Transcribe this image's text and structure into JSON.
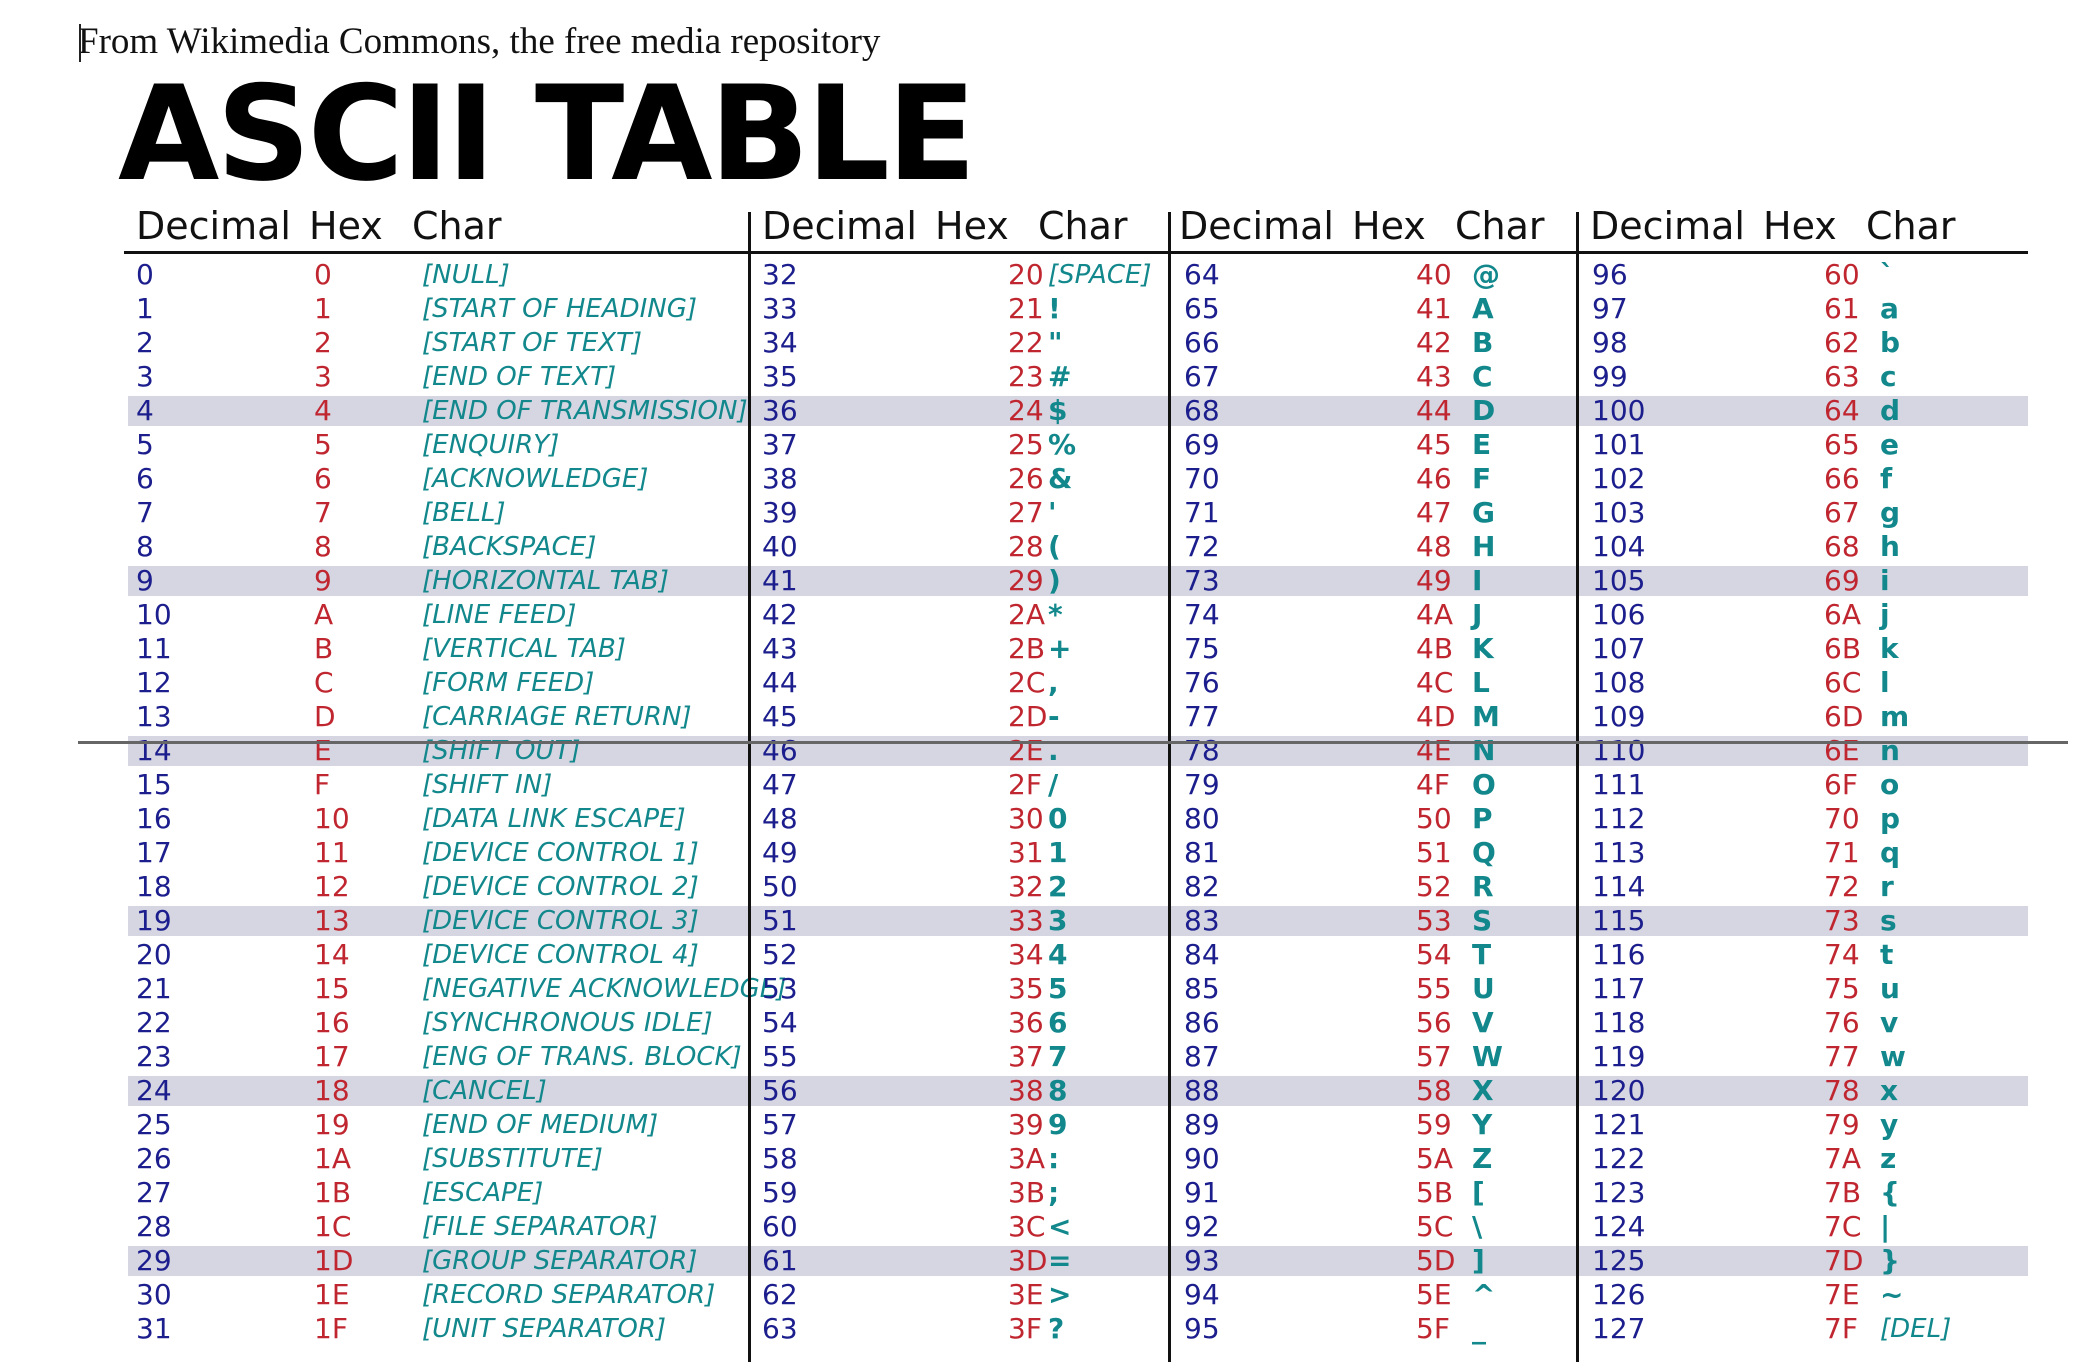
{
  "caption": "From Wikimedia Commons, the free media repository",
  "title": "ASCII TABLE",
  "headers": {
    "decimal": "Decimal",
    "hex": "Hex",
    "char": "Char"
  },
  "table": [
    {
      "dec": "0",
      "hex": "0",
      "char": "[NULL]",
      "kind": "ctl"
    },
    {
      "dec": "1",
      "hex": "1",
      "char": "[START OF HEADING]",
      "kind": "ctl"
    },
    {
      "dec": "2",
      "hex": "2",
      "char": "[START OF TEXT]",
      "kind": "ctl"
    },
    {
      "dec": "3",
      "hex": "3",
      "char": "[END OF TEXT]",
      "kind": "ctl"
    },
    {
      "dec": "4",
      "hex": "4",
      "char": "[END OF TRANSMISSION]",
      "kind": "ctl"
    },
    {
      "dec": "5",
      "hex": "5",
      "char": "[ENQUIRY]",
      "kind": "ctl"
    },
    {
      "dec": "6",
      "hex": "6",
      "char": "[ACKNOWLEDGE]",
      "kind": "ctl"
    },
    {
      "dec": "7",
      "hex": "7",
      "char": "[BELL]",
      "kind": "ctl"
    },
    {
      "dec": "8",
      "hex": "8",
      "char": "[BACKSPACE]",
      "kind": "ctl"
    },
    {
      "dec": "9",
      "hex": "9",
      "char": "[HORIZONTAL TAB]",
      "kind": "ctl"
    },
    {
      "dec": "10",
      "hex": "A",
      "char": "[LINE FEED]",
      "kind": "ctl"
    },
    {
      "dec": "11",
      "hex": "B",
      "char": "[VERTICAL TAB]",
      "kind": "ctl"
    },
    {
      "dec": "12",
      "hex": "C",
      "char": "[FORM FEED]",
      "kind": "ctl"
    },
    {
      "dec": "13",
      "hex": "D",
      "char": "[CARRIAGE RETURN]",
      "kind": "ctl"
    },
    {
      "dec": "14",
      "hex": "E",
      "char": "[SHIFT OUT]",
      "kind": "ctl"
    },
    {
      "dec": "15",
      "hex": "F",
      "char": "[SHIFT IN]",
      "kind": "ctl"
    },
    {
      "dec": "16",
      "hex": "10",
      "char": "[DATA LINK ESCAPE]",
      "kind": "ctl"
    },
    {
      "dec": "17",
      "hex": "11",
      "char": "[DEVICE CONTROL 1]",
      "kind": "ctl"
    },
    {
      "dec": "18",
      "hex": "12",
      "char": "[DEVICE CONTROL 2]",
      "kind": "ctl"
    },
    {
      "dec": "19",
      "hex": "13",
      "char": "[DEVICE CONTROL 3]",
      "kind": "ctl"
    },
    {
      "dec": "20",
      "hex": "14",
      "char": "[DEVICE CONTROL 4]",
      "kind": "ctl"
    },
    {
      "dec": "21",
      "hex": "15",
      "char": "[NEGATIVE ACKNOWLEDGE]",
      "kind": "ctl"
    },
    {
      "dec": "22",
      "hex": "16",
      "char": "[SYNCHRONOUS IDLE]",
      "kind": "ctl"
    },
    {
      "dec": "23",
      "hex": "17",
      "char": "[ENG OF TRANS. BLOCK]",
      "kind": "ctl"
    },
    {
      "dec": "24",
      "hex": "18",
      "char": "[CANCEL]",
      "kind": "ctl"
    },
    {
      "dec": "25",
      "hex": "19",
      "char": "[END OF MEDIUM]",
      "kind": "ctl"
    },
    {
      "dec": "26",
      "hex": "1A",
      "char": "[SUBSTITUTE]",
      "kind": "ctl"
    },
    {
      "dec": "27",
      "hex": "1B",
      "char": "[ESCAPE]",
      "kind": "ctl"
    },
    {
      "dec": "28",
      "hex": "1C",
      "char": "[FILE SEPARATOR]",
      "kind": "ctl"
    },
    {
      "dec": "29",
      "hex": "1D",
      "char": "[GROUP SEPARATOR]",
      "kind": "ctl"
    },
    {
      "dec": "30",
      "hex": "1E",
      "char": "[RECORD SEPARATOR]",
      "kind": "ctl"
    },
    {
      "dec": "31",
      "hex": "1F",
      "char": "[UNIT SEPARATOR]",
      "kind": "ctl"
    },
    {
      "dec": "32",
      "hex": "20",
      "char": "[SPACE]",
      "kind": "ctl"
    },
    {
      "dec": "33",
      "hex": "21",
      "char": "!",
      "kind": "chr"
    },
    {
      "dec": "34",
      "hex": "22",
      "char": "\"",
      "kind": "chr"
    },
    {
      "dec": "35",
      "hex": "23",
      "char": "#",
      "kind": "chr"
    },
    {
      "dec": "36",
      "hex": "24",
      "char": "$",
      "kind": "chr"
    },
    {
      "dec": "37",
      "hex": "25",
      "char": "%",
      "kind": "chr"
    },
    {
      "dec": "38",
      "hex": "26",
      "char": "&",
      "kind": "chr"
    },
    {
      "dec": "39",
      "hex": "27",
      "char": "'",
      "kind": "chr"
    },
    {
      "dec": "40",
      "hex": "28",
      "char": "(",
      "kind": "chr"
    },
    {
      "dec": "41",
      "hex": "29",
      "char": ")",
      "kind": "chr"
    },
    {
      "dec": "42",
      "hex": "2A",
      "char": "*",
      "kind": "chr"
    },
    {
      "dec": "43",
      "hex": "2B",
      "char": "+",
      "kind": "chr"
    },
    {
      "dec": "44",
      "hex": "2C",
      "char": ",",
      "kind": "chr"
    },
    {
      "dec": "45",
      "hex": "2D",
      "char": "-",
      "kind": "chr"
    },
    {
      "dec": "46",
      "hex": "2E",
      "char": ".",
      "kind": "chr"
    },
    {
      "dec": "47",
      "hex": "2F",
      "char": "/",
      "kind": "chr"
    },
    {
      "dec": "48",
      "hex": "30",
      "char": "0",
      "kind": "chr"
    },
    {
      "dec": "49",
      "hex": "31",
      "char": "1",
      "kind": "chr"
    },
    {
      "dec": "50",
      "hex": "32",
      "char": "2",
      "kind": "chr"
    },
    {
      "dec": "51",
      "hex": "33",
      "char": "3",
      "kind": "chr"
    },
    {
      "dec": "52",
      "hex": "34",
      "char": "4",
      "kind": "chr"
    },
    {
      "dec": "53",
      "hex": "35",
      "char": "5",
      "kind": "chr"
    },
    {
      "dec": "54",
      "hex": "36",
      "char": "6",
      "kind": "chr"
    },
    {
      "dec": "55",
      "hex": "37",
      "char": "7",
      "kind": "chr"
    },
    {
      "dec": "56",
      "hex": "38",
      "char": "8",
      "kind": "chr"
    },
    {
      "dec": "57",
      "hex": "39",
      "char": "9",
      "kind": "chr"
    },
    {
      "dec": "58",
      "hex": "3A",
      "char": ":",
      "kind": "chr"
    },
    {
      "dec": "59",
      "hex": "3B",
      "char": ";",
      "kind": "chr"
    },
    {
      "dec": "60",
      "hex": "3C",
      "char": "<",
      "kind": "chr"
    },
    {
      "dec": "61",
      "hex": "3D",
      "char": "=",
      "kind": "chr"
    },
    {
      "dec": "62",
      "hex": "3E",
      "char": ">",
      "kind": "chr"
    },
    {
      "dec": "63",
      "hex": "3F",
      "char": "?",
      "kind": "chr"
    },
    {
      "dec": "64",
      "hex": "40",
      "char": "@",
      "kind": "chr"
    },
    {
      "dec": "65",
      "hex": "41",
      "char": "A",
      "kind": "chr"
    },
    {
      "dec": "66",
      "hex": "42",
      "char": "B",
      "kind": "chr"
    },
    {
      "dec": "67",
      "hex": "43",
      "char": "C",
      "kind": "chr"
    },
    {
      "dec": "68",
      "hex": "44",
      "char": "D",
      "kind": "chr"
    },
    {
      "dec": "69",
      "hex": "45",
      "char": "E",
      "kind": "chr"
    },
    {
      "dec": "70",
      "hex": "46",
      "char": "F",
      "kind": "chr"
    },
    {
      "dec": "71",
      "hex": "47",
      "char": "G",
      "kind": "chr"
    },
    {
      "dec": "72",
      "hex": "48",
      "char": "H",
      "kind": "chr"
    },
    {
      "dec": "73",
      "hex": "49",
      "char": "I",
      "kind": "chr"
    },
    {
      "dec": "74",
      "hex": "4A",
      "char": "J",
      "kind": "chr"
    },
    {
      "dec": "75",
      "hex": "4B",
      "char": "K",
      "kind": "chr"
    },
    {
      "dec": "76",
      "hex": "4C",
      "char": "L",
      "kind": "chr"
    },
    {
      "dec": "77",
      "hex": "4D",
      "char": "M",
      "kind": "chr"
    },
    {
      "dec": "78",
      "hex": "4E",
      "char": "N",
      "kind": "chr"
    },
    {
      "dec": "79",
      "hex": "4F",
      "char": "O",
      "kind": "chr"
    },
    {
      "dec": "80",
      "hex": "50",
      "char": "P",
      "kind": "chr"
    },
    {
      "dec": "81",
      "hex": "51",
      "char": "Q",
      "kind": "chr"
    },
    {
      "dec": "82",
      "hex": "52",
      "char": "R",
      "kind": "chr"
    },
    {
      "dec": "83",
      "hex": "53",
      "char": "S",
      "kind": "chr"
    },
    {
      "dec": "84",
      "hex": "54",
      "char": "T",
      "kind": "chr"
    },
    {
      "dec": "85",
      "hex": "55",
      "char": "U",
      "kind": "chr"
    },
    {
      "dec": "86",
      "hex": "56",
      "char": "V",
      "kind": "chr"
    },
    {
      "dec": "87",
      "hex": "57",
      "char": "W",
      "kind": "chr"
    },
    {
      "dec": "88",
      "hex": "58",
      "char": "X",
      "kind": "chr"
    },
    {
      "dec": "89",
      "hex": "59",
      "char": "Y",
      "kind": "chr"
    },
    {
      "dec": "90",
      "hex": "5A",
      "char": "Z",
      "kind": "chr"
    },
    {
      "dec": "91",
      "hex": "5B",
      "char": "[",
      "kind": "chr"
    },
    {
      "dec": "92",
      "hex": "5C",
      "char": "\\",
      "kind": "chr"
    },
    {
      "dec": "93",
      "hex": "5D",
      "char": "]",
      "kind": "chr"
    },
    {
      "dec": "94",
      "hex": "5E",
      "char": "^",
      "kind": "chr"
    },
    {
      "dec": "95",
      "hex": "5F",
      "char": "_",
      "kind": "chr"
    },
    {
      "dec": "96",
      "hex": "60",
      "char": "`",
      "kind": "chr"
    },
    {
      "dec": "97",
      "hex": "61",
      "char": "a",
      "kind": "chr"
    },
    {
      "dec": "98",
      "hex": "62",
      "char": "b",
      "kind": "chr"
    },
    {
      "dec": "99",
      "hex": "63",
      "char": "c",
      "kind": "chr"
    },
    {
      "dec": "100",
      "hex": "64",
      "char": "d",
      "kind": "chr"
    },
    {
      "dec": "101",
      "hex": "65",
      "char": "e",
      "kind": "chr"
    },
    {
      "dec": "102",
      "hex": "66",
      "char": "f",
      "kind": "chr"
    },
    {
      "dec": "103",
      "hex": "67",
      "char": "g",
      "kind": "chr"
    },
    {
      "dec": "104",
      "hex": "68",
      "char": "h",
      "kind": "chr"
    },
    {
      "dec": "105",
      "hex": "69",
      "char": "i",
      "kind": "chr"
    },
    {
      "dec": "106",
      "hex": "6A",
      "char": "j",
      "kind": "chr"
    },
    {
      "dec": "107",
      "hex": "6B",
      "char": "k",
      "kind": "chr"
    },
    {
      "dec": "108",
      "hex": "6C",
      "char": "l",
      "kind": "chr"
    },
    {
      "dec": "109",
      "hex": "6D",
      "char": "m",
      "kind": "chr"
    },
    {
      "dec": "110",
      "hex": "6E",
      "char": "n",
      "kind": "chr"
    },
    {
      "dec": "111",
      "hex": "6F",
      "char": "o",
      "kind": "chr"
    },
    {
      "dec": "112",
      "hex": "70",
      "char": "p",
      "kind": "chr"
    },
    {
      "dec": "113",
      "hex": "71",
      "char": "q",
      "kind": "chr"
    },
    {
      "dec": "114",
      "hex": "72",
      "char": "r",
      "kind": "chr"
    },
    {
      "dec": "115",
      "hex": "73",
      "char": "s",
      "kind": "chr"
    },
    {
      "dec": "116",
      "hex": "74",
      "char": "t",
      "kind": "chr"
    },
    {
      "dec": "117",
      "hex": "75",
      "char": "u",
      "kind": "chr"
    },
    {
      "dec": "118",
      "hex": "76",
      "char": "v",
      "kind": "chr"
    },
    {
      "dec": "119",
      "hex": "77",
      "char": "w",
      "kind": "chr"
    },
    {
      "dec": "120",
      "hex": "78",
      "char": "x",
      "kind": "chr"
    },
    {
      "dec": "121",
      "hex": "79",
      "char": "y",
      "kind": "chr"
    },
    {
      "dec": "122",
      "hex": "7A",
      "char": "z",
      "kind": "chr"
    },
    {
      "dec": "123",
      "hex": "7B",
      "char": "{",
      "kind": "chr"
    },
    {
      "dec": "124",
      "hex": "7C",
      "char": "|",
      "kind": "chr"
    },
    {
      "dec": "125",
      "hex": "7D",
      "char": "}",
      "kind": "chr"
    },
    {
      "dec": "126",
      "hex": "7E",
      "char": "~",
      "kind": "chr"
    },
    {
      "dec": "127",
      "hex": "7F",
      "char": "[DEL]",
      "kind": "ctl"
    }
  ]
}
